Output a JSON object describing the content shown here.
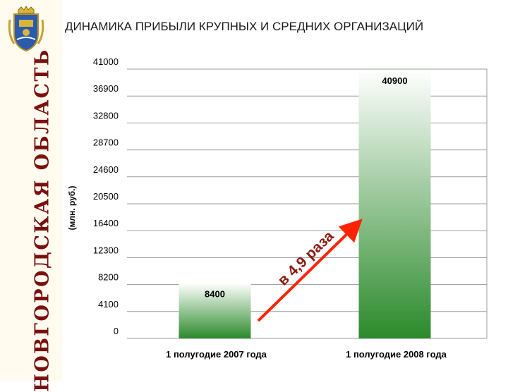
{
  "region": {
    "name": "НОВГОРОДСКАЯ ОБЛАСТЬ"
  },
  "emblem": {
    "icon": "coat-of-arms-icon"
  },
  "colors": {
    "bar_top": "#ffffff",
    "bar_bottom": "#2b8a2b",
    "arrow": "#ff2200",
    "sidebar_text": "#7a1010"
  },
  "chart_data": {
    "type": "bar",
    "title": "ДИНАМИКА ПРИБЫЛИ КРУПНЫХ И СРЕДНИХ ОРГАНИЗАЦИЙ",
    "ylabel": "(млн. руб.)",
    "xlabel": "",
    "categories": [
      "1 полугодие 2007 года",
      "1 полугодие 2008 года"
    ],
    "values": [
      8400,
      40900
    ],
    "data_labels": [
      "8400",
      "40900"
    ],
    "yticks": [
      0,
      4100,
      8200,
      12300,
      16400,
      20500,
      24600,
      28700,
      32800,
      36900,
      41000
    ],
    "ytick_labels": [
      "0",
      "4100",
      "8200",
      "12300",
      "16400",
      "20500",
      "24600",
      "28700",
      "32800",
      "36900",
      "41000"
    ],
    "ylim": [
      0,
      41000
    ],
    "grid": true,
    "annotation": "в 4,9 раза"
  }
}
